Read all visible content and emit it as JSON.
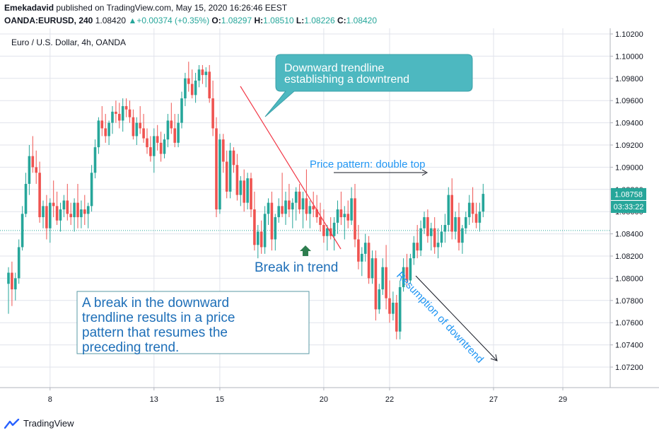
{
  "header": {
    "publisher": "Emekadavid",
    "published_text": "published on TradingView.com, May 15, 2020 16:26:46 EEST",
    "symbol": "OANDA:EURUSD, 240",
    "last": "1.08420",
    "change": "+0.00374 (+0.35%)",
    "o_label": "O:",
    "o_value": "1.08297",
    "h_label": "H:",
    "h_value": "1.08510",
    "l_label": "L:",
    "l_value": "1.08226",
    "c_label": "C:",
    "c_value": "1.08420"
  },
  "footer": {
    "brand": "TradingView"
  },
  "colors": {
    "up": "#26a69a",
    "down": "#ef5350",
    "annotation": "#2196f3",
    "callout_bg": "#4db8c0",
    "trendline": "#f23645",
    "grid": "#e0e3eb",
    "text": "#131722"
  },
  "chart_data": {
    "type": "candlestick",
    "title": "Euro / U.S. Dollar, 4h, OANDA",
    "ylim": [
      1.0705,
      1.1025
    ],
    "yticks": [
      "1.10200",
      "1.10000",
      "1.09800",
      "1.09600",
      "1.09400",
      "1.09200",
      "1.09000",
      "1.08800",
      "1.08600",
      "1.08400",
      "1.08200",
      "1.08000",
      "1.07800",
      "1.07600",
      "1.07400",
      "1.07200"
    ],
    "xticks": [
      {
        "label": "8",
        "index": 12
      },
      {
        "label": "13",
        "index": 42
      },
      {
        "label": "15",
        "index": 61
      },
      {
        "label": "20",
        "index": 91
      },
      {
        "label": "22",
        "index": 110
      },
      {
        "label": "27",
        "index": 140
      },
      {
        "label": "29",
        "index": 160
      }
    ],
    "current_price": {
      "label": "1.08758",
      "value": 1.08758
    },
    "countdown": "03:33:22",
    "dotted_level": 1.0843,
    "candles": [
      [
        1.0795,
        1.081,
        1.0768,
        1.0805
      ],
      [
        1.0805,
        1.0815,
        1.0775,
        1.079
      ],
      [
        1.079,
        1.0805,
        1.078,
        1.08
      ],
      [
        1.08,
        1.0835,
        1.0795,
        1.0828
      ],
      [
        1.0828,
        1.0865,
        1.0825,
        1.0858
      ],
      [
        1.0858,
        1.0895,
        1.0855,
        1.0885
      ],
      [
        1.0885,
        1.092,
        1.0875,
        1.091
      ],
      [
        1.091,
        1.0928,
        1.0895,
        1.09
      ],
      [
        1.09,
        1.0915,
        1.0885,
        1.0895
      ],
      [
        1.0895,
        1.0905,
        1.085,
        1.0855
      ],
      [
        1.0855,
        1.087,
        1.0845,
        1.0865
      ],
      [
        1.0865,
        1.0875,
        1.0835,
        1.0845
      ],
      [
        1.0845,
        1.0872,
        1.0832,
        1.0868
      ],
      [
        1.0868,
        1.0888,
        1.0855,
        1.0865
      ],
      [
        1.0865,
        1.0878,
        1.0848,
        1.0852
      ],
      [
        1.0852,
        1.0868,
        1.0842,
        1.0862
      ],
      [
        1.0862,
        1.0875,
        1.0855,
        1.087
      ],
      [
        1.087,
        1.0885,
        1.0852,
        1.0858
      ],
      [
        1.0858,
        1.0868,
        1.0848,
        1.0855
      ],
      [
        1.0855,
        1.0872,
        1.0842,
        1.0868
      ],
      [
        1.0868,
        1.0885,
        1.0845,
        1.0855
      ],
      [
        1.0855,
        1.087,
        1.0845,
        1.0862
      ],
      [
        1.0862,
        1.0875,
        1.0848,
        1.0858
      ],
      [
        1.0858,
        1.0868,
        1.0845,
        1.0865
      ],
      [
        1.0865,
        1.0902,
        1.086,
        1.0895
      ],
      [
        1.0895,
        1.0925,
        1.089,
        1.0918
      ],
      [
        1.0918,
        1.0945,
        1.0912,
        1.0942
      ],
      [
        1.0942,
        1.0955,
        1.0928,
        1.0935
      ],
      [
        1.0935,
        1.0948,
        1.0922,
        1.0928
      ],
      [
        1.0928,
        1.0942,
        1.092,
        1.094
      ],
      [
        1.094,
        1.0955,
        1.093,
        1.095
      ],
      [
        1.095,
        1.096,
        1.094,
        1.0948
      ],
      [
        1.0948,
        1.0958,
        1.0935,
        1.0942
      ],
      [
        1.0942,
        1.0962,
        1.0932,
        1.0955
      ],
      [
        1.0955,
        1.0962,
        1.0945,
        1.0952
      ],
      [
        1.0952,
        1.096,
        1.094,
        1.0945
      ],
      [
        1.0945,
        1.0952,
        1.0925,
        1.0928
      ],
      [
        1.0928,
        1.0945,
        1.092,
        1.094
      ],
      [
        1.094,
        1.0955,
        1.093,
        1.0935
      ],
      [
        1.0935,
        1.0948,
        1.0922,
        1.0926
      ],
      [
        1.0926,
        1.0935,
        1.0912,
        1.0918
      ],
      [
        1.0918,
        1.0928,
        1.0905,
        1.091
      ],
      [
        1.091,
        1.0935,
        1.0895,
        1.0928
      ],
      [
        1.0928,
        1.0938,
        1.0915,
        1.0922
      ],
      [
        1.0922,
        1.0932,
        1.0905,
        1.0912
      ],
      [
        1.0912,
        1.093,
        1.0908,
        1.0925
      ],
      [
        1.0925,
        1.0948,
        1.0918,
        1.0942
      ],
      [
        1.0942,
        1.0958,
        1.093,
        1.0935
      ],
      [
        1.0935,
        1.0948,
        1.0918,
        1.0922
      ],
      [
        1.0922,
        1.0948,
        1.0918,
        1.094
      ],
      [
        1.094,
        1.0968,
        1.0935,
        1.0962
      ],
      [
        1.0962,
        1.0985,
        1.0955,
        1.098
      ],
      [
        1.098,
        1.0995,
        1.0968,
        1.0975
      ],
      [
        1.0975,
        1.0988,
        1.0962,
        1.0965
      ],
      [
        1.0965,
        1.0985,
        1.0958,
        1.0978
      ],
      [
        1.0978,
        1.0992,
        1.0972,
        1.0988
      ],
      [
        1.0988,
        1.0992,
        1.0975,
        1.0983
      ],
      [
        1.0983,
        1.099,
        1.0972,
        1.0986
      ],
      [
        1.0986,
        1.0992,
        1.0958,
        1.0962
      ],
      [
        1.0962,
        1.0978,
        1.0928,
        1.0935
      ],
      [
        1.0935,
        1.0945,
        1.0855,
        1.0862
      ],
      [
        1.0862,
        1.093,
        1.0858,
        1.0925
      ],
      [
        1.0925,
        1.093,
        1.0895,
        1.0905
      ],
      [
        1.0905,
        1.0915,
        1.0872,
        1.0878
      ],
      [
        1.0878,
        1.0922,
        1.0872,
        1.0915
      ],
      [
        1.0915,
        1.0918,
        1.0895,
        1.0902
      ],
      [
        1.0902,
        1.0912,
        1.087,
        1.0875
      ],
      [
        1.0875,
        1.0892,
        1.0865,
        1.0888
      ],
      [
        1.0888,
        1.0898,
        1.086,
        1.0868
      ],
      [
        1.0868,
        1.0895,
        1.0862,
        1.089
      ],
      [
        1.089,
        1.0895,
        1.0855,
        1.0862
      ],
      [
        1.0862,
        1.0878,
        1.0825,
        1.083
      ],
      [
        1.083,
        1.0848,
        1.0818,
        1.0842
      ],
      [
        1.0842,
        1.0852,
        1.0822,
        1.0828
      ],
      [
        1.0828,
        1.0865,
        1.0822,
        1.0858
      ],
      [
        1.0858,
        1.0872,
        1.0848,
        1.0868
      ],
      [
        1.0868,
        1.0878,
        1.0825,
        1.0835
      ],
      [
        1.0835,
        1.0858,
        1.0825,
        1.0855
      ],
      [
        1.0855,
        1.0872,
        1.085,
        1.0865
      ],
      [
        1.0865,
        1.0895,
        1.0855,
        1.0858
      ],
      [
        1.0858,
        1.0878,
        1.0848,
        1.087
      ],
      [
        1.087,
        1.0885,
        1.0855,
        1.0862
      ],
      [
        1.0862,
        1.0872,
        1.0845,
        1.0868
      ],
      [
        1.0868,
        1.0882,
        1.0852,
        1.0878
      ],
      [
        1.0878,
        1.0885,
        1.0858,
        1.0862
      ],
      [
        1.0862,
        1.0878,
        1.0845,
        1.0872
      ],
      [
        1.0872,
        1.0898,
        1.0852,
        1.0858
      ],
      [
        1.0858,
        1.087,
        1.0845,
        1.0865
      ],
      [
        1.0865,
        1.0878,
        1.0855,
        1.0862
      ],
      [
        1.0862,
        1.0875,
        1.085,
        1.0855
      ],
      [
        1.0855,
        1.0868,
        1.0842,
        1.0848
      ],
      [
        1.0848,
        1.0862,
        1.0832,
        1.0838
      ],
      [
        1.0838,
        1.0848,
        1.0825,
        1.0845
      ],
      [
        1.0845,
        1.0855,
        1.0835,
        1.0838
      ],
      [
        1.0838,
        1.0855,
        1.0825,
        1.085
      ],
      [
        1.085,
        1.087,
        1.084,
        1.0862
      ],
      [
        1.0862,
        1.0878,
        1.0848,
        1.0855
      ],
      [
        1.0855,
        1.0865,
        1.0835,
        1.0858
      ],
      [
        1.0858,
        1.087,
        1.0845,
        1.0852
      ],
      [
        1.0852,
        1.0882,
        1.0848,
        1.0872
      ],
      [
        1.0872,
        1.0885,
        1.0828,
        1.0835
      ],
      [
        1.0835,
        1.0848,
        1.0808,
        1.0815
      ],
      [
        1.0815,
        1.0828,
        1.0802,
        1.0822
      ],
      [
        1.0822,
        1.084,
        1.0815,
        1.0832
      ],
      [
        1.0832,
        1.0838,
        1.0795,
        1.08
      ],
      [
        1.08,
        1.0825,
        1.0795,
        1.0818
      ],
      [
        1.0818,
        1.0825,
        1.0762,
        1.0772
      ],
      [
        1.0772,
        1.0795,
        1.0768,
        1.079
      ],
      [
        1.079,
        1.0818,
        1.0785,
        1.081
      ],
      [
        1.081,
        1.083,
        1.0772,
        1.0782
      ],
      [
        1.0782,
        1.0798,
        1.076,
        1.0768
      ],
      [
        1.0768,
        1.0788,
        1.0762,
        1.0778
      ],
      [
        1.0778,
        1.0785,
        1.0745,
        1.0752
      ],
      [
        1.0752,
        1.0798,
        1.0745,
        1.0792
      ],
      [
        1.0792,
        1.0818,
        1.0788,
        1.081
      ],
      [
        1.081,
        1.0822,
        1.0792,
        1.0798
      ],
      [
        1.0798,
        1.0822,
        1.0795,
        1.0818
      ],
      [
        1.0818,
        1.0838,
        1.0812,
        1.0832
      ],
      [
        1.0832,
        1.0848,
        1.0818,
        1.0825
      ],
      [
        1.0825,
        1.0852,
        1.082,
        1.0845
      ],
      [
        1.0845,
        1.086,
        1.084,
        1.0855
      ],
      [
        1.0855,
        1.0862,
        1.0832,
        1.0838
      ],
      [
        1.0838,
        1.085,
        1.0825,
        1.0845
      ],
      [
        1.0845,
        1.0855,
        1.0822,
        1.0828
      ],
      [
        1.0828,
        1.0845,
        1.0818,
        1.0832
      ],
      [
        1.0832,
        1.0848,
        1.0828,
        1.0842
      ],
      [
        1.0842,
        1.0858,
        1.0832,
        1.0848
      ],
      [
        1.0848,
        1.0882,
        1.0842,
        1.0875
      ],
      [
        1.0875,
        1.089,
        1.0835,
        1.0842
      ],
      [
        1.0842,
        1.086,
        1.0835,
        1.0855
      ],
      [
        1.0855,
        1.0868,
        1.0825,
        1.0832
      ],
      [
        1.0832,
        1.0848,
        1.0822,
        1.0845
      ],
      [
        1.0845,
        1.086,
        1.084,
        1.0855
      ],
      [
        1.0855,
        1.0875,
        1.0848,
        1.0868
      ],
      [
        1.0868,
        1.0882,
        1.085,
        1.0858
      ],
      [
        1.0858,
        1.0868,
        1.0845,
        1.085
      ],
      [
        1.085,
        1.0868,
        1.0842,
        1.086
      ],
      [
        1.086,
        1.0885,
        1.0855,
        1.0876
      ]
    ],
    "annotations": {
      "callout": [
        "Downward trendline",
        "establishing a downtrend"
      ],
      "price_pattern": "Price pattern: double top",
      "break": "Break in trend",
      "resumption": "Resumption of downtrend",
      "note": [
        "A break in the downward",
        "trendline results in a price",
        "pattern that resumes the",
        "preceding trend."
      ]
    }
  }
}
